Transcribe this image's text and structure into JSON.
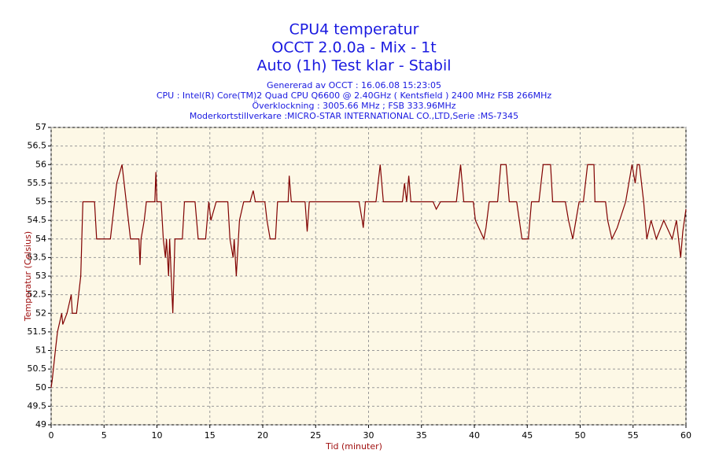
{
  "chart_data": {
    "type": "line",
    "title": "CPU4 temperatur",
    "title_lines": [
      "OCCT 2.0.0a - Mix - 1t",
      "Auto (1h) Test klar - Stabil"
    ],
    "subtitle_lines": [
      "Genererad av OCCT : 16.06.08 15:23:05",
      "CPU : Intel(R) Core(TM)2 Quad CPU Q6600 @ 2.40GHz ( Kentsfield ) 2400 MHz FSB 266MHz",
      "Överklockning : 3005.66 MHz ; FSB 333.96MHz",
      "Moderkortstillverkare :MICRO-STAR INTERNATIONAL CO.,LTD,Serie :MS-7345"
    ],
    "x_label": "Tid (minuter)",
    "y_label": "Temperatur (Celsius)",
    "x": [
      0,
      0.1,
      0.4,
      0.6,
      1.0,
      1.1,
      1.5,
      1.9,
      2.0,
      2.4,
      2.6,
      2.8,
      3.0,
      4.1,
      4.3,
      5.6,
      5.8,
      6.0,
      6.2,
      6.7,
      6.9,
      7.1,
      7.3,
      7.5,
      8.3,
      8.4,
      8.5,
      8.8,
      9.0,
      9.8,
      9.9,
      10.0,
      10.4,
      10.6,
      10.8,
      10.9,
      11.1,
      11.2,
      11.5,
      11.7,
      12.4,
      12.6,
      13.6,
      13.9,
      14.6,
      14.9,
      15.1,
      15.6,
      16.7,
      16.9,
      17.2,
      17.3,
      17.5,
      17.8,
      18.2,
      18.8,
      19.1,
      19.3,
      20.2,
      20.4,
      20.7,
      21.2,
      21.4,
      22.4,
      22.5,
      22.7,
      24.0,
      24.2,
      24.4,
      29.1,
      29.4,
      29.5,
      29.7,
      30.7,
      31.1,
      31.4,
      33.2,
      33.4,
      33.6,
      33.8,
      34.0,
      36.1,
      36.4,
      36.8,
      38.3,
      38.7,
      39.0,
      39.9,
      40.1,
      40.9,
      41.1,
      41.4,
      42.2,
      42.5,
      43.0,
      43.3,
      44.0,
      44.5,
      45.1,
      45.4,
      46.1,
      46.5,
      47.2,
      47.4,
      48.6,
      48.9,
      49.3,
      49.6,
      49.9,
      50.3,
      50.7,
      51.3,
      51.4,
      52.4,
      52.6,
      53.0,
      53.5,
      54.3,
      54.6,
      54.9,
      55.2,
      55.4,
      55.6,
      56.0,
      56.3,
      56.7,
      57.2,
      57.9,
      58.7,
      59.1,
      59.5,
      59.7,
      60
    ],
    "series": [
      {
        "name": "CPU4",
        "color": "#800000",
        "values": [
          50,
          50.2,
          51,
          51.5,
          52,
          51.7,
          52,
          52.5,
          52,
          52,
          52.5,
          53,
          55,
          55,
          54,
          54,
          54.5,
          55,
          55.5,
          56,
          55.5,
          55,
          54.5,
          54,
          54,
          53.3,
          54,
          54.5,
          55,
          55,
          55.8,
          55,
          55,
          54,
          53.5,
          54,
          53,
          54,
          52,
          54,
          54,
          55,
          55,
          54,
          54,
          55,
          54.5,
          55,
          55,
          54,
          53.5,
          54,
          53,
          54.5,
          55,
          55,
          55.3,
          55,
          55,
          54.5,
          54,
          54,
          55,
          55,
          55.7,
          55,
          55,
          54.2,
          55,
          55,
          54.5,
          54.3,
          55,
          55,
          56,
          55,
          55,
          55.5,
          55,
          55.7,
          55,
          55,
          54.8,
          55,
          55,
          56,
          55,
          55,
          54.5,
          54,
          54.3,
          55,
          55,
          56,
          56,
          55,
          55,
          54,
          54,
          55,
          55,
          56,
          56,
          55,
          55,
          54.5,
          54,
          54.5,
          55,
          55,
          56,
          56,
          55,
          55,
          54.5,
          54,
          54.3,
          55,
          55.5,
          56,
          55.5,
          56,
          56,
          55,
          54,
          54.5,
          54,
          54.5,
          54,
          54.5,
          53.5,
          54.2,
          54.8
        ]
      }
    ],
    "xlim": [
      0,
      60
    ],
    "xticks": [
      0,
      5,
      10,
      15,
      20,
      25,
      30,
      35,
      40,
      45,
      50,
      55,
      60
    ],
    "ylim": [
      49,
      57
    ],
    "yticks": [
      49,
      49.5,
      50,
      50.5,
      51,
      51.5,
      52,
      52.5,
      53,
      53.5,
      54,
      54.5,
      55,
      55.5,
      56,
      56.5,
      57
    ],
    "grid": true
  }
}
